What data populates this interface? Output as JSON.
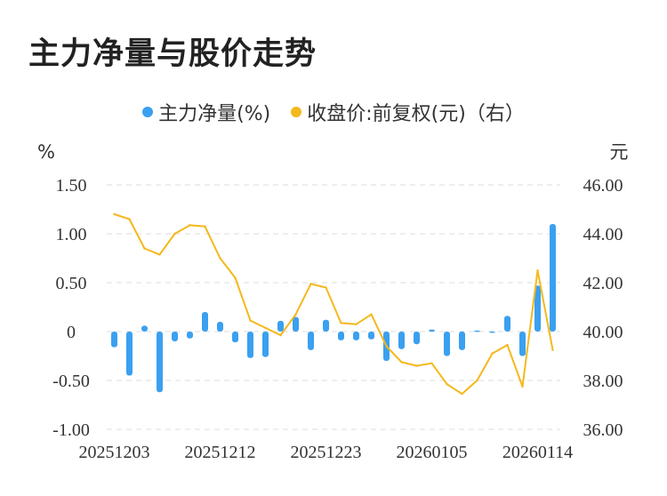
{
  "title": "主力净量与股价走势",
  "legend": {
    "bar_label": "主力净量(%)",
    "line_label": "收盘价:前复权(元)（右）"
  },
  "colors": {
    "bar": "#3AA0F0",
    "line": "#F5B81C",
    "grid": "#dddddd"
  },
  "chart_data": {
    "type": "bar",
    "left_unit": "%",
    "right_unit": "元",
    "left_axis": {
      "range": [
        -1.0,
        1.5
      ],
      "ticks": [
        1.5,
        1.0,
        0.5,
        0,
        -0.5,
        -1.0
      ],
      "tick_labels": [
        "1.50",
        "1.00",
        "0.50",
        "0",
        "-0.50",
        "-1.00"
      ]
    },
    "right_axis": {
      "range": [
        36,
        46
      ],
      "ticks": [
        46,
        44,
        42,
        40,
        38,
        36
      ],
      "tick_labels": [
        "46.00",
        "44.00",
        "42.00",
        "40.00",
        "38.00",
        "36.00"
      ]
    },
    "x_labels": [
      {
        "index": 0,
        "text": "20251203"
      },
      {
        "index": 7,
        "text": "20251212"
      },
      {
        "index": 14,
        "text": "20251223"
      },
      {
        "index": 21,
        "text": "20260105"
      },
      {
        "index": 28,
        "text": "20260114"
      }
    ],
    "series": [
      {
        "name": "主力净量(%)",
        "type": "bar",
        "values": [
          -0.16,
          -0.45,
          0.06,
          -0.62,
          -0.1,
          -0.07,
          0.2,
          0.1,
          -0.11,
          -0.27,
          -0.26,
          0.11,
          0.15,
          -0.19,
          0.12,
          -0.09,
          -0.09,
          -0.08,
          -0.3,
          -0.18,
          -0.13,
          0.02,
          -0.25,
          -0.19,
          0.01,
          -0.01,
          0.16,
          -0.25,
          0.47,
          1.1
        ]
      },
      {
        "name": "收盘价:前复权(元)（右）",
        "type": "line",
        "values": [
          44.8,
          44.6,
          43.4,
          43.15,
          44.0,
          44.35,
          44.3,
          43.0,
          42.2,
          40.45,
          40.15,
          39.85,
          40.7,
          41.95,
          41.8,
          40.35,
          40.3,
          40.7,
          39.4,
          38.75,
          38.6,
          38.7,
          37.85,
          37.45,
          38.0,
          39.1,
          39.45,
          37.75,
          42.5,
          39.25
        ]
      }
    ]
  }
}
